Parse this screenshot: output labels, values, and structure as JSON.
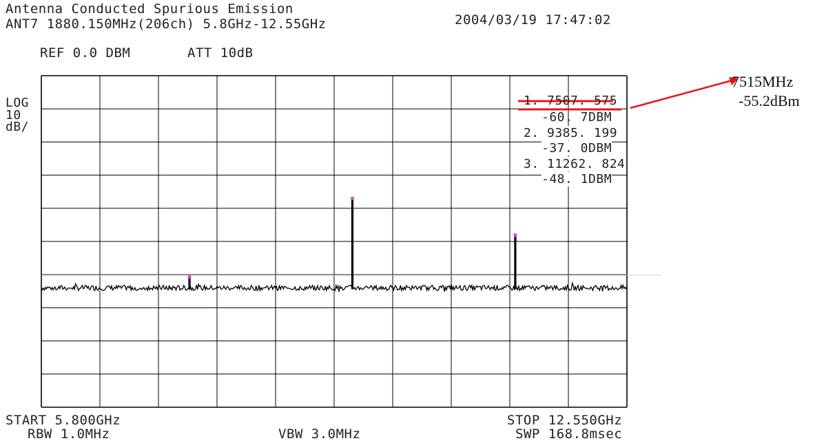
{
  "header": {
    "title": "Antenna Conducted Spurious Emission",
    "subtitle": "ANT7 1880.150MHz(206ch) 5.8GHz-12.55GHz",
    "datetime": "2004/03/19 17:47:02",
    "ref": "REF 0.0 DBM",
    "att": "ATT 10dB"
  },
  "scale": {
    "line1": "LOG",
    "line2": "10",
    "line3": "dB/"
  },
  "markers_readout": [
    "1. 7507. 575",
    "-60. 7DBM",
    "2. 9385. 199",
    "-37. 0DBM",
    "3. 11262. 824",
    "-48. 1DBM"
  ],
  "footer": {
    "start": "START 5.800GHz",
    "rbw": "RBW 1.0MHz",
    "vbw": "VBW 3.0MHz",
    "stop": "STOP 12.550GHz",
    "swp": "SWP 168.8msec"
  },
  "annotation": {
    "freq": "7515MHz",
    "level": "-55.2dBm",
    "color": "#e8141a"
  },
  "chart_data": {
    "type": "line",
    "xlim": [
      5800,
      12550
    ],
    "ylim": [
      -100,
      0
    ],
    "grid": true,
    "trace_color": "#000000",
    "marker_color": "#e040e0",
    "noise_floor_dbm": -64,
    "peaks": [
      {
        "x": 7507.575,
        "y": -60.7
      },
      {
        "x": 9385.199,
        "y": -37.0
      },
      {
        "x": 11262.824,
        "y": -48.1
      }
    ],
    "markers": [
      {
        "x": 7507.575,
        "y": -60.7
      },
      {
        "x": 9385.199,
        "y": -37.0
      },
      {
        "x": 11262.824,
        "y": -48.1
      }
    ]
  }
}
